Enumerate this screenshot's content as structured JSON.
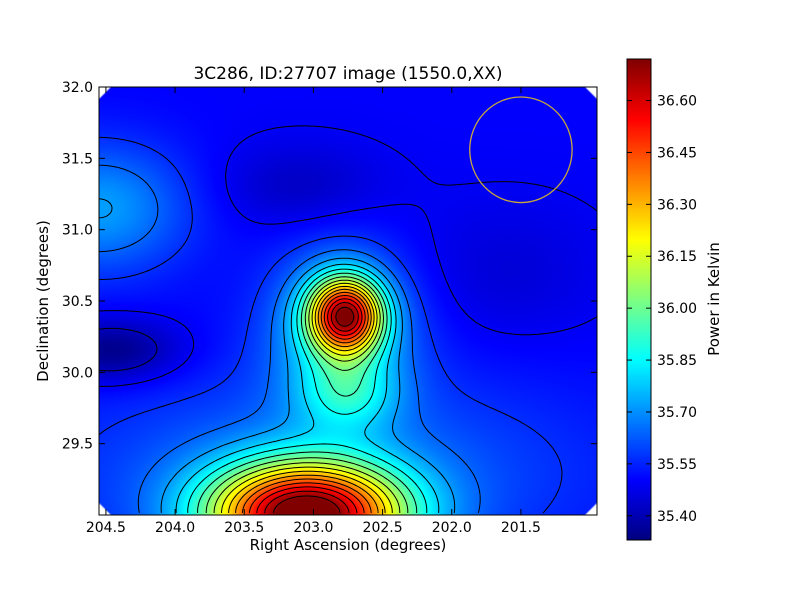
{
  "chart_data": {
    "type": "heatmap",
    "title": "3C286, ID:27707 image (1550.0,XX)",
    "xlabel": "Right Ascension (degrees)",
    "ylabel": "Declination (degrees)",
    "colorbar_label": "Power in Kelvin",
    "x_reversed": true,
    "xlim": [
      204.55,
      200.95
    ],
    "ylim": [
      29.0,
      32.0
    ],
    "x_ticks": [
      204.5,
      204.0,
      203.5,
      203.0,
      202.5,
      202.0,
      201.5
    ],
    "x_tick_labels": [
      "204.5",
      "204.0",
      "203.5",
      "203.0",
      "202.5",
      "202.0",
      "201.5"
    ],
    "y_ticks": [
      29.5,
      30.0,
      30.5,
      31.0,
      31.5,
      32.0
    ],
    "y_tick_labels": [
      "29.5",
      "30.0",
      "30.5",
      "31.0",
      "31.5",
      "32.0"
    ],
    "colorbar_ticks": [
      35.4,
      35.55,
      35.7,
      35.85,
      36.0,
      36.15,
      36.3,
      36.45,
      36.6
    ],
    "colorbar_tick_labels": [
      "35.40",
      "35.55",
      "35.70",
      "35.85",
      "36.00",
      "36.15",
      "36.30",
      "36.45",
      "36.60"
    ],
    "colorbar_range": [
      35.33,
      36.72
    ],
    "colormap": "jet",
    "contour_color": "#000000",
    "beam_circle": {
      "ra": 201.5,
      "dec": 31.56,
      "radius_deg": 0.37,
      "color": "#c8a83c"
    },
    "features": [
      {
        "kind": "peak",
        "ra": 202.77,
        "dec": 30.4,
        "value": 36.5
      },
      {
        "kind": "peak",
        "ra": 203.05,
        "dec": 29.0,
        "value": 36.72
      },
      {
        "kind": "trough",
        "ra": 204.45,
        "dec": 30.15,
        "value": 35.34
      },
      {
        "kind": "trough",
        "ra": 203.1,
        "dec": 31.25,
        "value": 35.4
      },
      {
        "kind": "trough",
        "ra": 201.5,
        "dec": 30.7,
        "value": 35.45
      }
    ]
  }
}
